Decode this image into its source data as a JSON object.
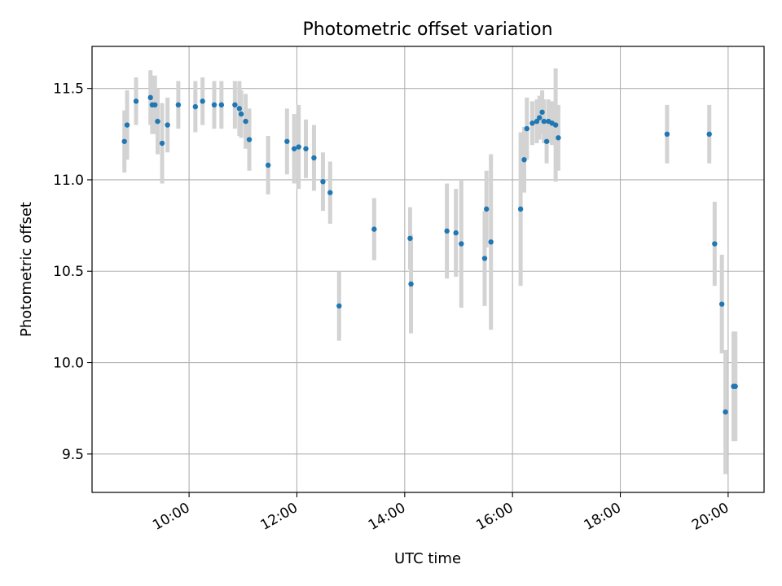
{
  "chart_data": {
    "type": "scatter",
    "title": "Photometric offset variation",
    "xlabel": "UTC time",
    "ylabel": "Photometric offset",
    "grid": true,
    "xlim": [
      "08:12",
      "20:40"
    ],
    "ylim": [
      9.29,
      11.73
    ],
    "x_ticks": [
      "10:00",
      "12:00",
      "14:00",
      "16:00",
      "18:00",
      "20:00"
    ],
    "y_ticks": [
      9.5,
      10.0,
      10.5,
      11.0,
      11.5
    ],
    "colors": {
      "points": "#1f77b4",
      "errorbars": "#d3d3d3",
      "grid": "#b0b0b0"
    },
    "series": [
      {
        "x": [
          "08:48",
          "08:51",
          "09:01",
          "09:17",
          "09:19",
          "09:22",
          "09:25",
          "09:30",
          "09:36",
          "09:48",
          "10:07",
          "10:15",
          "10:28",
          "10:36",
          "10:51",
          "10:56",
          "10:58",
          "11:03",
          "11:07",
          "11:28",
          "11:49",
          "11:57",
          "12:02",
          "12:10",
          "12:19",
          "12:29",
          "12:37",
          "12:47",
          "13:26",
          "14:06",
          "14:07",
          "14:47",
          "14:57",
          "15:03",
          "15:29",
          "15:31",
          "15:36",
          "16:09",
          "16:13",
          "16:16",
          "16:22",
          "16:27",
          "16:30",
          "16:33",
          "16:35",
          "16:38",
          "16:40",
          "16:44",
          "16:48",
          "16:51",
          "18:52",
          "19:39",
          "19:45",
          "19:53",
          "19:57",
          "20:06",
          "20:08"
        ],
        "y": [
          11.21,
          11.3,
          11.43,
          11.45,
          11.41,
          11.41,
          11.32,
          11.2,
          11.3,
          11.41,
          11.4,
          11.43,
          11.41,
          11.41,
          11.41,
          11.39,
          11.36,
          11.32,
          11.22,
          11.08,
          11.21,
          11.17,
          11.18,
          11.17,
          11.12,
          10.99,
          10.93,
          10.31,
          10.73,
          10.68,
          10.43,
          10.72,
          10.71,
          10.65,
          10.57,
          10.84,
          10.66,
          10.84,
          11.11,
          11.28,
          11.31,
          11.32,
          11.34,
          11.37,
          11.32,
          11.21,
          11.32,
          11.31,
          11.3,
          11.23,
          11.25,
          11.25,
          10.65,
          10.32,
          9.73,
          9.87,
          9.87
        ],
        "yerr": [
          0.17,
          0.19,
          0.13,
          0.15,
          0.16,
          0.16,
          0.18,
          0.22,
          0.15,
          0.13,
          0.14,
          0.13,
          0.13,
          0.13,
          0.13,
          0.15,
          0.13,
          0.15,
          0.17,
          0.16,
          0.18,
          0.19,
          0.23,
          0.16,
          0.18,
          0.16,
          0.17,
          0.19,
          0.17,
          0.17,
          0.27,
          0.26,
          0.24,
          0.35,
          0.26,
          0.21,
          0.48,
          0.42,
          0.18,
          0.17,
          0.12,
          0.12,
          0.12,
          0.12,
          0.12,
          0.12,
          0.12,
          0.12,
          0.31,
          0.18,
          0.16,
          0.16,
          0.23,
          0.27,
          0.34,
          0.3,
          0.3
        ]
      }
    ]
  }
}
